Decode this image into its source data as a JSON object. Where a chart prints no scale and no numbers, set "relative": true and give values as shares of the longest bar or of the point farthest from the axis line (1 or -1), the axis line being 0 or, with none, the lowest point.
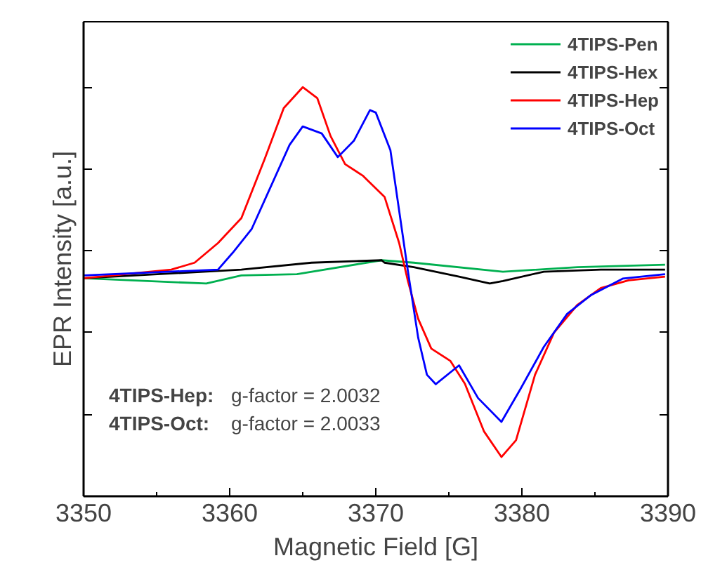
{
  "chart_data": {
    "type": "line",
    "relative": true,
    "xlabel": "Magnetic Field [G]",
    "ylabel": "EPR Intensity [a.u.]",
    "xlim": [
      3350,
      3390
    ],
    "xticks": [
      3350,
      3360,
      3370,
      3380,
      3390
    ],
    "tick_labels": "x",
    "legend": "top right",
    "grid": false,
    "series": [
      {
        "name": "4TIPS-Pen",
        "color": "#00b050",
        "x": [
          3350,
          3358.4,
          3360.8,
          3364.6,
          3370.4,
          3372.6,
          3378.7,
          3383.8,
          3389.8
        ],
        "values": [
          0.533,
          0.52,
          0.54,
          0.543,
          0.577,
          0.571,
          0.549,
          0.56,
          0.566
        ]
      },
      {
        "name": "4TIPS-Hex",
        "color": "#000000",
        "x": [
          3350,
          3360.8,
          3365.6,
          3370.4,
          3370.6,
          3372.6,
          3375.7,
          3377.8,
          3378.7,
          3381.5,
          3385.4,
          3389.8
        ],
        "values": [
          0.533,
          0.554,
          0.571,
          0.577,
          0.571,
          0.56,
          0.537,
          0.52,
          0.526,
          0.549,
          0.554,
          0.554
        ]
      },
      {
        "name": "4TIPS-Hep",
        "color": "#ff0000",
        "x": [
          3350,
          3356.0,
          3357.6,
          3359.2,
          3360.8,
          3362.4,
          3363.7,
          3365.0,
          3366.0,
          3366.9,
          3367.9,
          3369.1,
          3370.6,
          3371.6,
          3372.2,
          3372.9,
          3373.8,
          3375.1,
          3376.1,
          3377.4,
          3378.6,
          3379.6,
          3380.9,
          3382.2,
          3383.8,
          3385.4,
          3387.3,
          3389.8
        ],
        "values": [
          0.533,
          0.554,
          0.571,
          0.619,
          0.68,
          0.825,
          0.949,
          1.0,
          0.973,
          0.881,
          0.812,
          0.784,
          0.732,
          0.619,
          0.526,
          0.434,
          0.361,
          0.331,
          0.275,
          0.159,
          0.096,
          0.137,
          0.297,
          0.4,
          0.468,
          0.509,
          0.528,
          0.537
        ]
      },
      {
        "name": "4TIPS-Oct",
        "color": "#0000ff",
        "x": [
          3350,
          3359.2,
          3360.2,
          3361.5,
          3362.8,
          3364.1,
          3365.0,
          3366.3,
          3367.4,
          3368.5,
          3369.6,
          3370.0,
          3371.0,
          3371.6,
          3372.2,
          3372.9,
          3373.5,
          3374.1,
          3375.7,
          3377.0,
          3378.6,
          3379.9,
          3381.5,
          3383.1,
          3384.7,
          3386.9,
          3389.8
        ],
        "values": [
          0.54,
          0.554,
          0.595,
          0.653,
          0.756,
          0.859,
          0.904,
          0.887,
          0.829,
          0.869,
          0.944,
          0.938,
          0.846,
          0.698,
          0.55,
          0.388,
          0.297,
          0.274,
          0.32,
          0.24,
          0.182,
          0.262,
          0.365,
          0.446,
          0.491,
          0.532,
          0.543
        ]
      }
    ],
    "annotations": [
      "4TIPS-Hep:     g-factor = 2.0032",
      "4TIPS-Oct:     g-factor = 2.0033"
    ]
  }
}
